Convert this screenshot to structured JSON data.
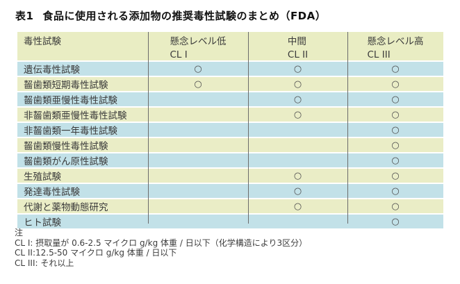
{
  "title": {
    "prefix": "表1",
    "text": "食品に使用される添加物の推奨毒性試験のまとめ（FDA）"
  },
  "table": {
    "colors": {
      "header_bg": "#e9edc3",
      "row_yellow": "#eaedc6",
      "row_blue": "#c2e1e8",
      "grid_line": "#6b6b6b",
      "text": "#3a3a3a"
    },
    "header": {
      "col1": "毒性試験",
      "col2": {
        "line1": "懸念レベル低",
        "line2": "CL I"
      },
      "col3": {
        "line1": "中間",
        "line2": "CL II"
      },
      "col4": {
        "line1": "懸念レベル高",
        "line2": "CL III"
      }
    },
    "mark_symbol": "○",
    "rows": [
      {
        "label": "遺伝毒性試験",
        "cl1": "○",
        "cl2": "○",
        "cl3": "○"
      },
      {
        "label": "齧歯類短期毒性試験",
        "cl1": "○",
        "cl2": "○",
        "cl3": "○"
      },
      {
        "label": "齧歯類亜慢性毒性試験",
        "cl1": "",
        "cl2": "○",
        "cl3": "○"
      },
      {
        "label": "非齧歯類亜慢性毒性試験",
        "cl1": "",
        "cl2": "○",
        "cl3": "○"
      },
      {
        "label": "非齧歯類一年毒性試験",
        "cl1": "",
        "cl2": "",
        "cl3": "○"
      },
      {
        "label": "齧歯類慢性毒性試験",
        "cl1": "",
        "cl2": "",
        "cl3": "○"
      },
      {
        "label": "齧歯類がん原性試験",
        "cl1": "",
        "cl2": "",
        "cl3": "○"
      },
      {
        "label": "生殖試験",
        "cl1": "",
        "cl2": "○",
        "cl3": "○"
      },
      {
        "label": "発達毒性試験",
        "cl1": "",
        "cl2": "○",
        "cl3": "○"
      },
      {
        "label": "代謝と薬物動態研究",
        "cl1": "",
        "cl2": "○",
        "cl3": "○"
      },
      {
        "label": "ヒト試験",
        "cl1": "",
        "cl2": "",
        "cl3": "○"
      }
    ]
  },
  "footnotes": {
    "heading": "注",
    "lines": [
      "CL I: 摂取量が 0.6-2.5 マイクロ g/kg 体重 / 日以下（化学構造により3区分）",
      "CL II:12.5-50 マイクロ g/kg 体重 / 日以下",
      "CL III: それ以上"
    ]
  }
}
